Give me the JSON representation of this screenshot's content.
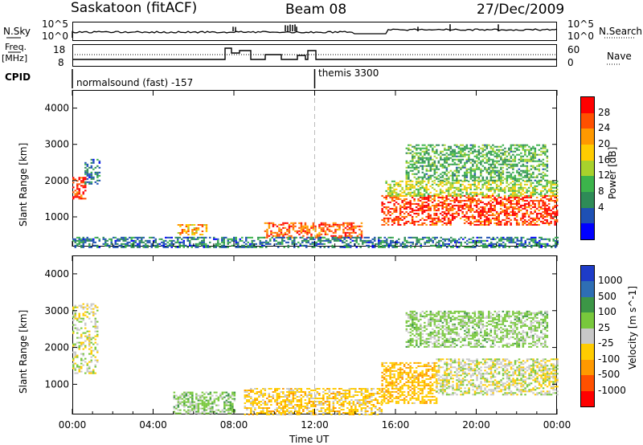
{
  "header": {
    "station": "Saskatoon (fitACF)",
    "beam": "Beam 08",
    "date": "27/Dec/2009"
  },
  "top_panels": {
    "nsky_label": "N.Sky",
    "nsky_ticks": [
      "10^5",
      "10^0"
    ],
    "nsearch_label": "N.Search",
    "nsearch_ticks": [
      "10^5",
      "10^0"
    ],
    "freq_label": "Freq.",
    "freq_unit": "[MHz]",
    "freq_ticks": [
      "18",
      "8"
    ],
    "nave_label": "Nave",
    "nave_ticks": [
      "60",
      "0"
    ],
    "cpid_label": "CPID",
    "cpid_segments": [
      {
        "label": "normalsound (fast) -157",
        "start_hour": 0,
        "end_hour": 12
      },
      {
        "label": "themis 3300",
        "start_hour": 12,
        "end_hour": 24
      }
    ]
  },
  "chart_data": [
    {
      "type": "heatmap",
      "name": "power-panel",
      "xlabel": "Time UT",
      "ylabel": "Slant Range [km]",
      "xlim": [
        0,
        24
      ],
      "ylim": [
        180,
        4500
      ],
      "y_ticks": [
        "1000",
        "2000",
        "3000",
        "4000"
      ],
      "x_ticks": [
        "00:00",
        "04:00",
        "08:00",
        "12:00",
        "16:00",
        "20:00",
        "00:00"
      ],
      "colorbar_label": "Power [dB]",
      "colorbar_ticks": [
        "28",
        "24",
        "20",
        "16",
        "12",
        "8",
        "4"
      ],
      "colorbar_colors": [
        "#ff0000",
        "#ff5000",
        "#ff9900",
        "#ffcc00",
        "#a8d22c",
        "#3cb44b",
        "#2e8b57",
        "#1e50b4",
        "#0000ff"
      ],
      "echo_regions": [
        {
          "start_hour": 0.0,
          "end_hour": 0.6,
          "range_min": 1500,
          "range_max": 2100,
          "value": 26
        },
        {
          "start_hour": 0.6,
          "end_hour": 1.3,
          "range_min": 1900,
          "range_max": 2600,
          "value": 6
        },
        {
          "start_hour": 5.2,
          "end_hour": 6.6,
          "range_min": 500,
          "range_max": 800,
          "value": 20
        },
        {
          "start_hour": 9.5,
          "end_hour": 14.3,
          "range_min": 450,
          "range_max": 850,
          "value": 24
        },
        {
          "start_hour": 15.3,
          "end_hour": 24.0,
          "range_min": 800,
          "range_max": 1600,
          "value": 26
        },
        {
          "start_hour": 15.5,
          "end_hour": 24.0,
          "range_min": 1600,
          "range_max": 2000,
          "value": 14
        },
        {
          "start_hour": 16.5,
          "end_hour": 23.5,
          "range_min": 2000,
          "range_max": 3000,
          "value": 10
        },
        {
          "start_hour": 0.0,
          "end_hour": 24.0,
          "range_min": 180,
          "range_max": 450,
          "value": 6
        }
      ]
    },
    {
      "type": "heatmap",
      "name": "velocity-panel",
      "xlabel": "Time UT",
      "ylabel": "Slant Range [km]",
      "xlim": [
        0,
        24
      ],
      "ylim": [
        180,
        4500
      ],
      "y_ticks": [
        "1000",
        "2000",
        "3000",
        "4000"
      ],
      "x_ticks": [
        "00:00",
        "04:00",
        "08:00",
        "12:00",
        "16:00",
        "20:00",
        "00:00"
      ],
      "colorbar_label": "Velocity [m s^-1]",
      "colorbar_ticks": [
        "1000",
        "500",
        "100",
        "25",
        "-25",
        "-100",
        "-500",
        "-1000"
      ],
      "colorbar_colors": [
        "#1e3cc8",
        "#2e6eb4",
        "#3c9646",
        "#78c83c",
        "#c8c8c8",
        "#ffcc00",
        "#ff9900",
        "#ff5000",
        "#ff0000"
      ],
      "echo_regions": [
        {
          "start_hour": 0.0,
          "end_hour": 1.2,
          "range_min": 1300,
          "range_max": 3200,
          "value": 0
        },
        {
          "start_hour": 5.0,
          "end_hour": 8.0,
          "range_min": 200,
          "range_max": 800,
          "value": 60
        },
        {
          "start_hour": 8.5,
          "end_hour": 15.3,
          "range_min": 200,
          "range_max": 900,
          "value": -60
        },
        {
          "start_hour": 15.3,
          "end_hour": 18.0,
          "range_min": 500,
          "range_max": 1600,
          "value": -80
        },
        {
          "start_hour": 18.0,
          "end_hour": 24.0,
          "range_min": 700,
          "range_max": 1700,
          "value": 0
        },
        {
          "start_hour": 16.5,
          "end_hour": 23.5,
          "range_min": 2000,
          "range_max": 3000,
          "value": 50
        }
      ]
    }
  ]
}
